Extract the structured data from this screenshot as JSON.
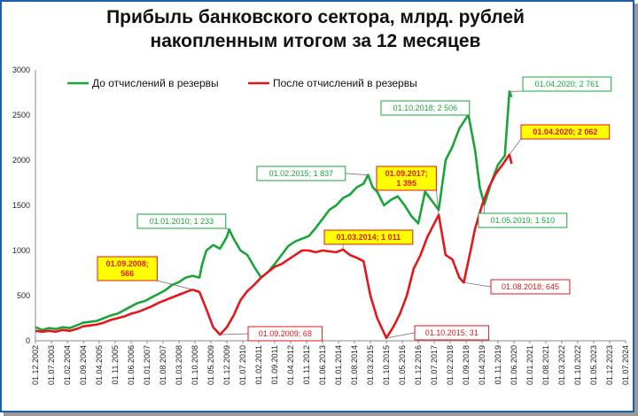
{
  "title": {
    "line1": "Прибыль банковского сектора, млрд. рублей",
    "line2": "накопленным итогом за 12 месяцев"
  },
  "colors": {
    "before": "#1aa53a",
    "after": "#e3171b",
    "highlight_fill": "#ffff00"
  },
  "chart_data": {
    "type": "line",
    "ylim": [
      0,
      3000
    ],
    "yticks": [
      0,
      500,
      1000,
      1500,
      2000,
      2500,
      3000
    ],
    "x_range": [
      "2002-12-01",
      "2024-07-01"
    ],
    "xticks": [
      "01.12.2002",
      "01.07.2003",
      "01.02.2004",
      "01.09.2004",
      "01.04.2005",
      "01.11.2005",
      "01.06.2006",
      "01.01.2007",
      "01.08.2007",
      "01.03.2008",
      "01.10.2008",
      "01.05.2009",
      "01.12.2009",
      "01.07.2010",
      "01.02.2011",
      "01.09.2011",
      "01.04.2012",
      "01.11.2012",
      "01.06.2013",
      "01.01.2014",
      "01.08.2014",
      "01.03.2015",
      "01.10.2015",
      "01.05.2016",
      "01.12.2016",
      "01.07.2017",
      "01.02.2018",
      "01.09.2018",
      "01.04.2019",
      "01.11.2019",
      "01.06.2020",
      "01.01.2021",
      "01.08.2021",
      "01.03.2022",
      "01.10.2022",
      "01.05.2023",
      "01.12.2023",
      "01.07.2024"
    ],
    "legend_position": "top-left",
    "grid": false,
    "series": [
      {
        "name": "До отчислений в резервы",
        "color": "#1aa53a",
        "points": [
          [
            "2002-12-01",
            150
          ],
          [
            "2003-03-01",
            120
          ],
          [
            "2003-06-01",
            140
          ],
          [
            "2003-09-01",
            130
          ],
          [
            "2003-12-01",
            150
          ],
          [
            "2004-03-01",
            140
          ],
          [
            "2004-06-01",
            170
          ],
          [
            "2004-09-01",
            200
          ],
          [
            "2004-12-01",
            210
          ],
          [
            "2005-03-01",
            220
          ],
          [
            "2005-06-01",
            250
          ],
          [
            "2005-09-01",
            280
          ],
          [
            "2005-12-01",
            300
          ],
          [
            "2006-03-01",
            340
          ],
          [
            "2006-06-01",
            380
          ],
          [
            "2006-09-01",
            420
          ],
          [
            "2006-12-01",
            440
          ],
          [
            "2007-03-01",
            480
          ],
          [
            "2007-06-01",
            520
          ],
          [
            "2007-09-01",
            560
          ],
          [
            "2007-12-01",
            620
          ],
          [
            "2008-03-01",
            650
          ],
          [
            "2008-06-01",
            700
          ],
          [
            "2008-09-01",
            720
          ],
          [
            "2008-12-01",
            700
          ],
          [
            "2009-01-01",
            830
          ],
          [
            "2009-03-01",
            1000
          ],
          [
            "2009-06-01",
            1060
          ],
          [
            "2009-09-01",
            1020
          ],
          [
            "2009-12-01",
            1150
          ],
          [
            "2010-01-01",
            1233
          ],
          [
            "2010-03-01",
            1130
          ],
          [
            "2010-06-01",
            1000
          ],
          [
            "2010-09-01",
            950
          ],
          [
            "2010-12-01",
            820
          ],
          [
            "2011-03-01",
            700
          ],
          [
            "2011-06-01",
            760
          ],
          [
            "2011-09-01",
            850
          ],
          [
            "2011-12-01",
            950
          ],
          [
            "2012-03-01",
            1050
          ],
          [
            "2012-06-01",
            1100
          ],
          [
            "2012-09-01",
            1130
          ],
          [
            "2012-12-01",
            1160
          ],
          [
            "2013-03-01",
            1250
          ],
          [
            "2013-06-01",
            1350
          ],
          [
            "2013-09-01",
            1450
          ],
          [
            "2013-12-01",
            1500
          ],
          [
            "2014-03-01",
            1580
          ],
          [
            "2014-06-01",
            1620
          ],
          [
            "2014-09-01",
            1700
          ],
          [
            "2014-12-01",
            1740
          ],
          [
            "2015-02-01",
            1837
          ],
          [
            "2015-04-01",
            1700
          ],
          [
            "2015-06-01",
            1650
          ],
          [
            "2015-09-01",
            1500
          ],
          [
            "2015-12-01",
            1560
          ],
          [
            "2016-03-01",
            1600
          ],
          [
            "2016-06-01",
            1500
          ],
          [
            "2016-09-01",
            1380
          ],
          [
            "2016-12-01",
            1300
          ],
          [
            "2017-03-01",
            1650
          ],
          [
            "2017-06-01",
            1550
          ],
          [
            "2017-09-01",
            1450
          ],
          [
            "2017-12-01",
            2000
          ],
          [
            "2018-03-01",
            2150
          ],
          [
            "2018-06-01",
            2350
          ],
          [
            "2018-10-01",
            2506
          ],
          [
            "2019-01-01",
            2100
          ],
          [
            "2019-03-01",
            1700
          ],
          [
            "2019-05-01",
            1510
          ],
          [
            "2019-08-01",
            1750
          ],
          [
            "2019-11-01",
            1950
          ],
          [
            "2020-02-01",
            2050
          ],
          [
            "2020-04-01",
            2761
          ],
          [
            "2020-05-01",
            2700
          ]
        ]
      },
      {
        "name": "После отчислений в резервы",
        "color": "#e3171b",
        "points": [
          [
            "2002-12-01",
            110
          ],
          [
            "2003-03-01",
            100
          ],
          [
            "2003-06-01",
            110
          ],
          [
            "2003-09-01",
            100
          ],
          [
            "2003-12-01",
            120
          ],
          [
            "2004-03-01",
            110
          ],
          [
            "2004-06-01",
            130
          ],
          [
            "2004-09-01",
            160
          ],
          [
            "2004-12-01",
            170
          ],
          [
            "2005-03-01",
            180
          ],
          [
            "2005-06-01",
            200
          ],
          [
            "2005-09-01",
            230
          ],
          [
            "2005-12-01",
            250
          ],
          [
            "2006-03-01",
            270
          ],
          [
            "2006-06-01",
            300
          ],
          [
            "2006-09-01",
            320
          ],
          [
            "2006-12-01",
            350
          ],
          [
            "2007-03-01",
            380
          ],
          [
            "2007-06-01",
            420
          ],
          [
            "2007-09-01",
            450
          ],
          [
            "2007-12-01",
            480
          ],
          [
            "2008-03-01",
            510
          ],
          [
            "2008-06-01",
            540
          ],
          [
            "2008-09-01",
            566
          ],
          [
            "2008-12-01",
            540
          ],
          [
            "2009-03-01",
            350
          ],
          [
            "2009-06-01",
            150
          ],
          [
            "2009-09-01",
            68
          ],
          [
            "2009-12-01",
            150
          ],
          [
            "2010-03-01",
            280
          ],
          [
            "2010-06-01",
            450
          ],
          [
            "2010-09-01",
            550
          ],
          [
            "2010-12-01",
            620
          ],
          [
            "2011-03-01",
            700
          ],
          [
            "2011-06-01",
            760
          ],
          [
            "2011-09-01",
            820
          ],
          [
            "2011-12-01",
            850
          ],
          [
            "2012-03-01",
            900
          ],
          [
            "2012-06-01",
            950
          ],
          [
            "2012-09-01",
            1000
          ],
          [
            "2012-12-01",
            1000
          ],
          [
            "2013-03-01",
            980
          ],
          [
            "2013-06-01",
            1000
          ],
          [
            "2013-09-01",
            990
          ],
          [
            "2013-12-01",
            980
          ],
          [
            "2014-03-01",
            1011
          ],
          [
            "2014-06-01",
            950
          ],
          [
            "2014-09-01",
            920
          ],
          [
            "2014-12-01",
            880
          ],
          [
            "2015-03-01",
            500
          ],
          [
            "2015-06-01",
            250
          ],
          [
            "2015-10-01",
            31
          ],
          [
            "2016-01-01",
            150
          ],
          [
            "2016-04-01",
            300
          ],
          [
            "2016-07-01",
            500
          ],
          [
            "2016-10-01",
            800
          ],
          [
            "2017-01-01",
            950
          ],
          [
            "2017-04-01",
            1150
          ],
          [
            "2017-09-01",
            1395
          ],
          [
            "2017-12-01",
            950
          ],
          [
            "2018-03-01",
            900
          ],
          [
            "2018-06-01",
            700
          ],
          [
            "2018-08-01",
            645
          ],
          [
            "2018-11-01",
            1000
          ],
          [
            "2019-01-01",
            1250
          ],
          [
            "2019-04-01",
            1500
          ],
          [
            "2019-07-01",
            1700
          ],
          [
            "2019-10-01",
            1850
          ],
          [
            "2020-01-01",
            1950
          ],
          [
            "2020-04-01",
            2062
          ],
          [
            "2020-05-01",
            1960
          ]
        ]
      }
    ],
    "annotations": [
      {
        "series": "before",
        "date": "2010-01-01",
        "value": 1233,
        "text": "01.01.2010; 1 233",
        "highlight": false
      },
      {
        "series": "before",
        "date": "2015-02-01",
        "value": 1837,
        "text": "01.02.2015; 1 837",
        "highlight": false
      },
      {
        "series": "before",
        "date": "2018-10-01",
        "value": 2506,
        "text": "01.10.2018; 2 506",
        "highlight": false
      },
      {
        "series": "before",
        "date": "2020-04-01",
        "value": 2761,
        "text": "01.04.2020; 2 761",
        "highlight": false
      },
      {
        "series": "before",
        "date": "2019-05-01",
        "value": 1510,
        "text": "01.05.2019; 1 510",
        "highlight": false
      },
      {
        "series": "after",
        "date": "2008-09-01",
        "value": 566,
        "text": [
          "01.09.2008;",
          "566"
        ],
        "highlight": true
      },
      {
        "series": "after",
        "date": "2009-09-01",
        "value": 68,
        "text": "01.09.2009; 68",
        "highlight": false
      },
      {
        "series": "after",
        "date": "2014-03-01",
        "value": 1011,
        "text": "01.03.2014; 1 011",
        "highlight": true
      },
      {
        "series": "after",
        "date": "2015-10-01",
        "value": 31,
        "text": "01.10.2015; 31",
        "highlight": false
      },
      {
        "series": "after",
        "date": "2017-09-01",
        "value": 1395,
        "text": [
          "01.09.2017;",
          "1 395"
        ],
        "highlight": true
      },
      {
        "series": "after",
        "date": "2018-08-01",
        "value": 645,
        "text": "01.08.2018; 645",
        "highlight": false
      },
      {
        "series": "after",
        "date": "2020-04-01",
        "value": 2062,
        "text": "01.04.2020; 2 062",
        "highlight": true
      }
    ]
  }
}
